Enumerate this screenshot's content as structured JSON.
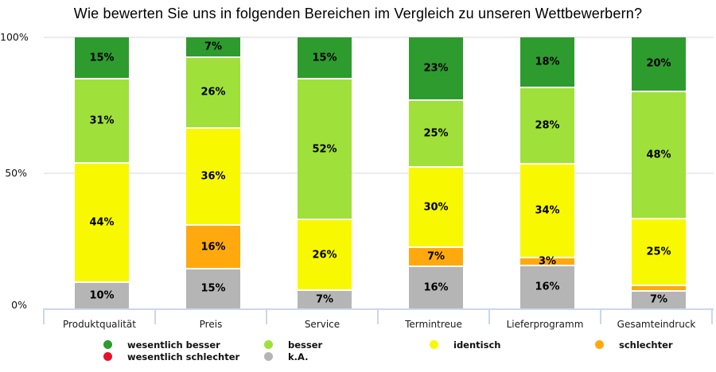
{
  "title": "Wie bewerten Sie uns in folgenden Bereichen im Vergleich zu unseren Wettbewerbern?",
  "y_axis": {
    "tick_labels": [
      "100%",
      "50%",
      "0%"
    ]
  },
  "chart_data": {
    "type": "bar",
    "variant": "stacked-percent",
    "title": "Wie bewerten Sie uns in folgenden Bereichen im Vergleich zu unseren Wettbewerbern?",
    "xlabel": "",
    "ylabel": "",
    "ylim": [
      0,
      100
    ],
    "grid": "horizontal lines at 50% and 100%",
    "legend_position": "bottom",
    "categories": [
      "Produktqualität",
      "Preis",
      "Service",
      "Termintreue",
      "Lieferprogramm",
      "Gesamteindruck"
    ],
    "series": [
      {
        "name": "wesentlich besser",
        "color": "#2E9B2E",
        "values": [
          15,
          7,
          15,
          23,
          18,
          20
        ],
        "labels": [
          "15%",
          "7%",
          "15%",
          "23%",
          "18%",
          "20%"
        ]
      },
      {
        "name": "besser",
        "color": "#9FE03A",
        "values": [
          31,
          26,
          52,
          25,
          28,
          48
        ],
        "labels": [
          "31%",
          "26%",
          "52%",
          "25%",
          "28%",
          "48%"
        ]
      },
      {
        "name": "identisch",
        "color": "#F8F800",
        "values": [
          44,
          36,
          26,
          30,
          34,
          25
        ],
        "labels": [
          "44%",
          "36%",
          "26%",
          "30%",
          "34%",
          "25%"
        ]
      },
      {
        "name": "schlechter",
        "color": "#FFA90E",
        "values": [
          0,
          16,
          0,
          7,
          3,
          2
        ],
        "labels": [
          "",
          "16%",
          "",
          "7%",
          "3%",
          ""
        ]
      },
      {
        "name": "wesentlich schlechter",
        "color": "#E8112D",
        "values": [
          0,
          0,
          0,
          0,
          0,
          0
        ],
        "labels": [
          "",
          "",
          "",
          "",
          "",
          ""
        ]
      },
      {
        "name": "k.A.",
        "color": "#B5B5B5",
        "values": [
          10,
          15,
          7,
          16,
          16,
          7
        ],
        "labels": [
          "10%",
          "15%",
          "7%",
          "16%",
          "16%",
          "7%"
        ]
      }
    ],
    "legend_rows": [
      [
        "wesentlich besser",
        "besser",
        "identisch",
        "schlechter"
      ],
      [
        "wesentlich schlechter",
        "k.A."
      ]
    ]
  }
}
